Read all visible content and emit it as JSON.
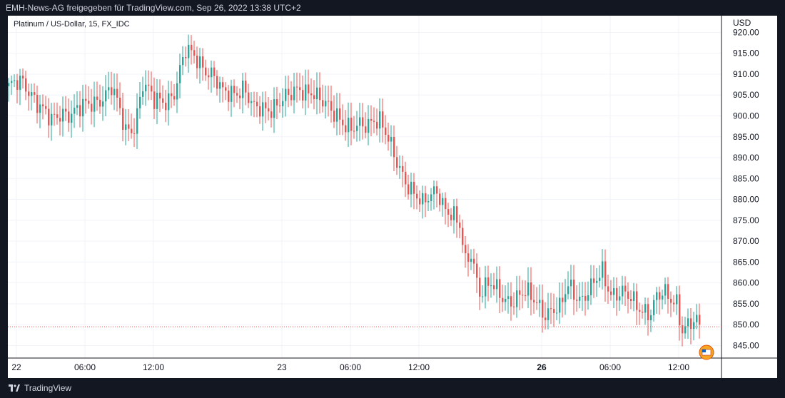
{
  "header": {
    "attribution": "EMH-News-AG freigegeben für TradingView.com, Sep 26, 2022 13:38 UTC+2"
  },
  "footer": {
    "brand": "TradingView"
  },
  "colors": {
    "up": "#26a69a",
    "down": "#ef5350",
    "background": "#131722",
    "panel": "#ffffff",
    "grid": "#f0f3fa",
    "last_price_line": "#ef5350"
  },
  "chart_data": {
    "type": "candlestick",
    "title": "Platinum / US-Dollar, 15, FX_IDC",
    "ylabel": "USD",
    "ylim": [
      842,
      924
    ],
    "yticks": [
      "920.00",
      "915.00",
      "910.00",
      "905.00",
      "900.00",
      "895.00",
      "890.00",
      "885.00",
      "880.00",
      "875.00",
      "870.00",
      "865.00",
      "860.00",
      "855.00",
      "850.00",
      "845.00"
    ],
    "xticks": [
      {
        "label": "22",
        "bold": false,
        "idx": 3
      },
      {
        "label": "06:00",
        "bold": false,
        "idx": 27
      },
      {
        "label": "12:00",
        "bold": false,
        "idx": 51
      },
      {
        "label": "23",
        "bold": false,
        "idx": 96
      },
      {
        "label": "06:00",
        "bold": false,
        "idx": 120
      },
      {
        "label": "12:00",
        "bold": false,
        "idx": 144
      },
      {
        "label": "26",
        "bold": true,
        "idx": 187
      },
      {
        "label": "06:00",
        "bold": false,
        "idx": 211
      },
      {
        "label": "12:00",
        "bold": false,
        "idx": 235
      }
    ],
    "last_price": 849.5,
    "anchors": [
      [
        0,
        907
      ],
      [
        5,
        907.5
      ],
      [
        9,
        905
      ],
      [
        15,
        898
      ],
      [
        19,
        901
      ],
      [
        28,
        902
      ],
      [
        36,
        907
      ],
      [
        41,
        896
      ],
      [
        44,
        898
      ],
      [
        47,
        908
      ],
      [
        51,
        903
      ],
      [
        55,
        904
      ],
      [
        58,
        906
      ],
      [
        62,
        915
      ],
      [
        66,
        914
      ],
      [
        71,
        910
      ],
      [
        75,
        905
      ],
      [
        82,
        907
      ],
      [
        86,
        901
      ],
      [
        90,
        902
      ],
      [
        98,
        904
      ],
      [
        102,
        907
      ],
      [
        106,
        906
      ],
      [
        109,
        903
      ],
      [
        115,
        901
      ],
      [
        120,
        896
      ],
      [
        125,
        898
      ],
      [
        128,
        900
      ],
      [
        130,
        899
      ],
      [
        135,
        890
      ],
      [
        140,
        884
      ],
      [
        145,
        878
      ],
      [
        150,
        883
      ],
      [
        153,
        878
      ],
      [
        158,
        873
      ],
      [
        160,
        865
      ],
      [
        162,
        868
      ],
      [
        165,
        858
      ],
      [
        169,
        859
      ],
      [
        173,
        857
      ],
      [
        177,
        856
      ],
      [
        181,
        857
      ],
      [
        185,
        856
      ],
      [
        188,
        853
      ],
      [
        193,
        853
      ],
      [
        196,
        860
      ],
      [
        201,
        856
      ],
      [
        204,
        858
      ],
      [
        208,
        863
      ],
      [
        211,
        858
      ],
      [
        215,
        857
      ],
      [
        220,
        855
      ],
      [
        225,
        853
      ],
      [
        227,
        856
      ],
      [
        230,
        857
      ],
      [
        234,
        856
      ],
      [
        236,
        849
      ],
      [
        240,
        850
      ],
      [
        242,
        849.5
      ]
    ]
  }
}
